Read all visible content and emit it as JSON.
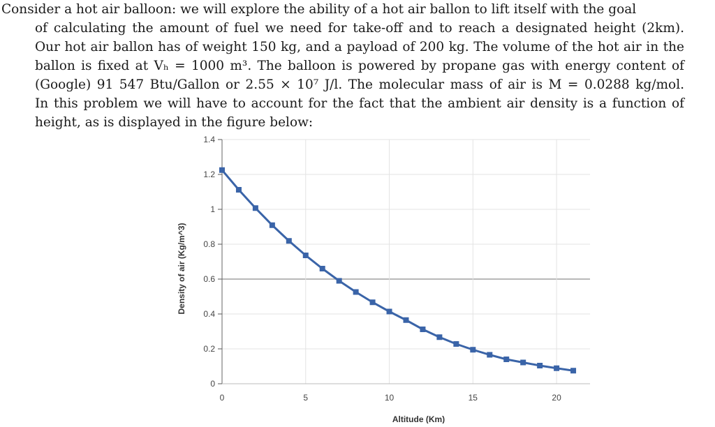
{
  "problem_lines": [
    "Consider a hot air balloon: we will explore the ability of a hot air ballon to lift itself with the goal",
    "of calculating the amount of fuel we need for take-off and to reach a designated height (2km).",
    "Our hot air ballon has of weight 150 kg, and a payload of 200 kg. The volume of the hot air in the",
    "ballon is fixed at Vₕ = 1000 m³. The balloon is powered by propane gas with energy content of",
    "(Google) 91 547 Btu/Gallon or 2.55 × 10⁷ J/l. The molecular mass of air is M = 0.0288 kg/mol.",
    "In this problem we will have to account for the fact that the ambient air density is a function of",
    "height, as is displayed in the figure below:"
  ],
  "chart_data": {
    "type": "line",
    "title": "",
    "xlabel": "Altitude (Km)",
    "ylabel": "Density of air (Kg/m^3)",
    "xlim": [
      0,
      22
    ],
    "ylim": [
      0,
      1.4
    ],
    "x_ticks": [
      "0",
      "5",
      "10",
      "15",
      "20"
    ],
    "y_ticks": [
      "0",
      "0.2",
      "0.4",
      "0.6",
      "0.8",
      "1",
      "1.2",
      "1.4"
    ],
    "grid": true,
    "series": [
      {
        "color": "#3a64a8",
        "marker": "square",
        "x": [
          0,
          1,
          2,
          3,
          4,
          5,
          6,
          7,
          8,
          9,
          10,
          11,
          12,
          13,
          14,
          15,
          16,
          17,
          18,
          19,
          20,
          21
        ],
        "y": [
          1.225,
          1.112,
          1.007,
          0.909,
          0.819,
          0.736,
          0.66,
          0.59,
          0.526,
          0.467,
          0.414,
          0.365,
          0.312,
          0.267,
          0.228,
          0.195,
          0.166,
          0.14,
          0.122,
          0.104,
          0.089,
          0.075
        ]
      }
    ]
  }
}
